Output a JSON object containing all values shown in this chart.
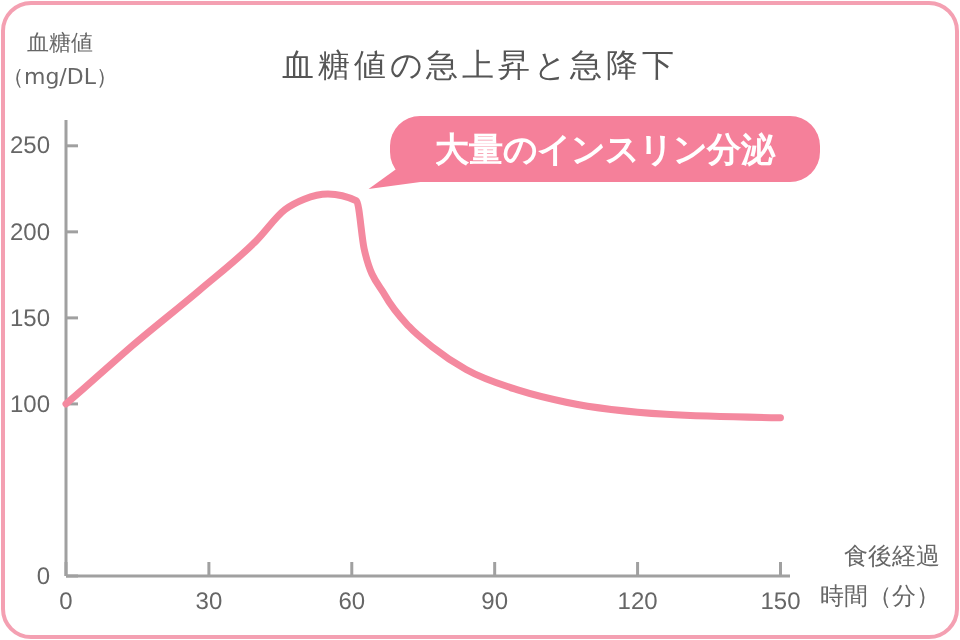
{
  "chart_data": {
    "type": "line",
    "title": "血糖値の急上昇と急降下",
    "ylabel": "血糖値（mg/DL）",
    "xlabel": "食後経過時間（分）",
    "x": [
      0,
      7,
      14,
      28,
      40,
      46,
      50,
      55,
      61,
      62.6,
      67,
      72,
      77,
      84,
      95,
      105,
      126,
      150
    ],
    "series": [
      {
        "color": "#f4899f",
        "values": [
          100,
          117,
          134,
          166,
          195,
          213,
          219,
          222,
          218,
          190,
          163,
          145,
          133,
          120,
          108,
          101,
          94,
          92
        ]
      }
    ],
    "xlim": [
      0,
      152
    ],
    "ylim": [
      0,
      265
    ],
    "xticks": [
      0,
      30,
      60,
      90,
      120,
      150
    ],
    "yticks": [
      0,
      100,
      150,
      200,
      250
    ],
    "grid": false,
    "marker": "none",
    "line_style": "solid",
    "annotations": [
      {
        "text": "大量のインスリン分泌",
        "x": 61,
        "y": 218
      }
    ]
  }
}
